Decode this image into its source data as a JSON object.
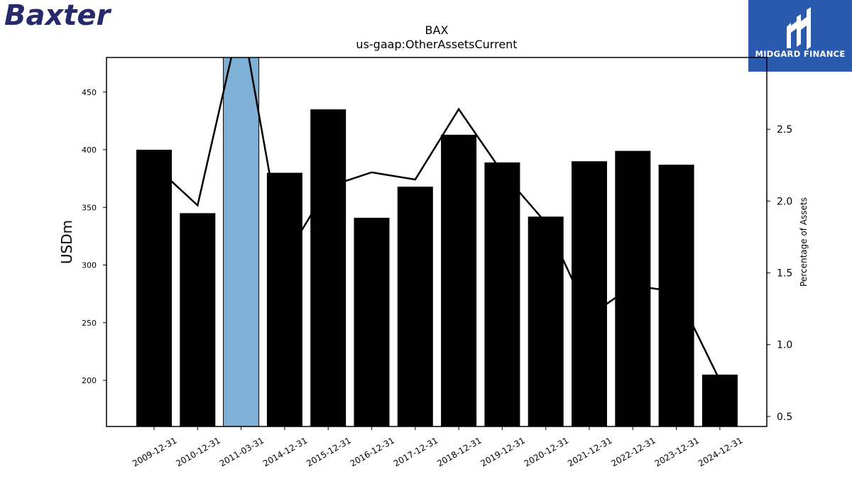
{
  "brand": {
    "company_logo_text": "Baxter",
    "publisher_logo_text": "MIDGARD FINANCE"
  },
  "chart_data": {
    "type": "bar",
    "title": "BAX",
    "subtitle": "us-gaap:OtherAssetsCurrent",
    "ylabel": "USDm",
    "y2label": "Percentage of Assets",
    "categories": [
      "2009-12-31",
      "2010-12-31",
      "2011-03-31",
      "2014-12-31",
      "2015-12-31",
      "2016-12-31",
      "2017-12-31",
      "2018-12-31",
      "2019-12-31",
      "2020-12-31",
      "2021-12-31",
      "2022-12-31",
      "2023-12-31",
      "2024-12-31"
    ],
    "series": [
      {
        "type": "bar",
        "axis": "left",
        "values": [
          400,
          345,
          495,
          380,
          435,
          341,
          368,
          413,
          389,
          342,
          390,
          399,
          387,
          205
        ],
        "colors": [
          "#000000",
          "#000000",
          "#7fb0d5",
          "#000000",
          "#000000",
          "#000000",
          "#000000",
          "#000000",
          "#000000",
          "#000000",
          "#000000",
          "#000000",
          "#000000",
          "#000000"
        ]
      },
      {
        "type": "line",
        "axis": "right",
        "color": "#000000",
        "values": [
          2.25,
          1.97,
          3.3,
          1.6,
          2.1,
          2.2,
          2.15,
          2.64,
          2.2,
          1.85,
          1.2,
          1.41,
          1.37,
          0.75
        ]
      }
    ],
    "ylim": [
      160,
      480
    ],
    "yticks": [
      200,
      250,
      300,
      350,
      400,
      450
    ],
    "y2lim": [
      0.43,
      3.0
    ],
    "y2ticks": [
      0.5,
      1.0,
      1.5,
      2.0,
      2.5
    ],
    "grid": false,
    "legend": "none"
  }
}
